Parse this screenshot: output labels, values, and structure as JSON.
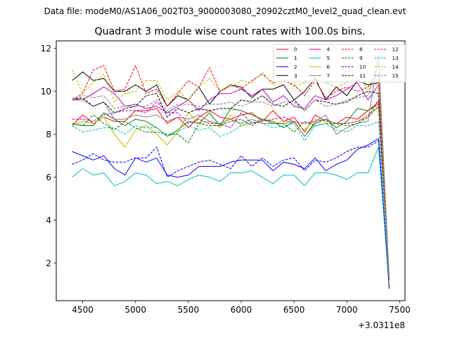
{
  "chart_data": {
    "type": "line",
    "suptitle": "Data file: modeM0/AS1A06_002T03_9000003080_20902cztM0_level2_quad_clean.evt",
    "title": "Quadrant 3 module wise count rates with 100.0s bins.",
    "xlabel": "",
    "ylabel": "",
    "offset_text": "+3.0311e8",
    "xlim": [
      4250,
      7550
    ],
    "ylim": [
      0.25,
      12.35
    ],
    "x_ticks": [
      4500,
      5000,
      5500,
      6000,
      6500,
      7000,
      7500
    ],
    "y_ticks": [
      2,
      4,
      6,
      8,
      10,
      12
    ],
    "x": [
      4400,
      4500,
      4600,
      4700,
      4800,
      4900,
      5000,
      5100,
      5200,
      5300,
      5400,
      5500,
      5600,
      5700,
      5800,
      5900,
      6000,
      6100,
      6200,
      6300,
      6400,
      6500,
      6600,
      6700,
      6800,
      6900,
      7000,
      7100,
      7200,
      7300,
      7400
    ],
    "legend": {
      "location": "top-right",
      "columns": 4
    },
    "series": [
      {
        "name": "0",
        "color": "#ff0000",
        "dash": "solid",
        "values": [
          8.4,
          8.9,
          8.5,
          8.8,
          8.6,
          8.6,
          9.1,
          9.1,
          9.2,
          8.5,
          8.8,
          8.3,
          8.8,
          9.1,
          8.8,
          8.7,
          8.9,
          9.0,
          8.6,
          9.1,
          8.6,
          8.8,
          8.1,
          8.9,
          8.6,
          8.5,
          8.8,
          8.7,
          9.1,
          9.5,
          1.2
        ]
      },
      {
        "name": "1",
        "color": "#008000",
        "dash": "solid",
        "values": [
          8.5,
          8.4,
          8.4,
          9.0,
          8.7,
          8.4,
          8.7,
          8.6,
          8.3,
          7.9,
          8.2,
          8.6,
          8.5,
          9.0,
          8.4,
          9.2,
          9.1,
          8.9,
          8.7,
          8.6,
          8.3,
          8.6,
          7.9,
          8.5,
          8.7,
          8.3,
          8.6,
          9.2,
          9.1,
          9.4,
          1.3
        ]
      },
      {
        "name": "2",
        "color": "#0000ff",
        "dash": "solid",
        "values": [
          7.2,
          7.0,
          6.8,
          7.0,
          6.4,
          6.1,
          6.9,
          6.7,
          6.9,
          6.1,
          6.0,
          6.1,
          6.5,
          6.5,
          6.5,
          6.7,
          6.8,
          6.8,
          6.8,
          6.3,
          6.7,
          6.6,
          6.4,
          6.9,
          6.3,
          6.6,
          6.8,
          7.3,
          7.5,
          7.8,
          0.8
        ]
      },
      {
        "name": "3",
        "color": "#000000",
        "dash": "solid",
        "values": [
          10.5,
          10.9,
          10.5,
          10.6,
          10.0,
          10.0,
          10.3,
          10.0,
          10.3,
          9.3,
          9.8,
          9.6,
          10.2,
          9.4,
          10.0,
          10.3,
          10.2,
          9.7,
          10.1,
          10.1,
          10.3,
          9.6,
          10.0,
          10.6,
          9.6,
          10.2,
          9.8,
          10.5,
          10.3,
          10.4,
          1.1
        ]
      },
      {
        "name": "4",
        "color": "#c000c0",
        "dash": "solid",
        "values": [
          9.6,
          9.6,
          9.9,
          10.2,
          9.9,
          9.3,
          9.4,
          9.2,
          9.3,
          9.0,
          9.3,
          9.6,
          9.1,
          9.6,
          9.9,
          9.9,
          10.1,
          9.8,
          10.1,
          9.5,
          9.8,
          9.3,
          9.2,
          9.8,
          9.6,
          9.8,
          10.1,
          10.4,
          9.6,
          10.3,
          1.2
        ]
      },
      {
        "name": "5",
        "color": "#00bfbf",
        "dash": "solid",
        "values": [
          6.0,
          6.4,
          6.1,
          6.2,
          5.6,
          5.8,
          6.2,
          6.1,
          5.7,
          5.8,
          5.6,
          5.9,
          6.1,
          6.0,
          5.8,
          6.2,
          6.2,
          6.3,
          6.0,
          5.7,
          6.1,
          6.1,
          5.6,
          6.2,
          6.2,
          6.1,
          5.9,
          6.2,
          6.2,
          7.4,
          1.1
        ]
      },
      {
        "name": "6",
        "color": "#bfbf00",
        "dash": "solid",
        "values": [
          8.4,
          8.6,
          8.5,
          8.8,
          8.0,
          7.4,
          8.2,
          8.4,
          8.0,
          7.5,
          8.1,
          9.0,
          8.5,
          8.6,
          8.3,
          8.9,
          8.4,
          8.5,
          8.7,
          8.5,
          8.6,
          8.6,
          8.2,
          8.7,
          8.6,
          8.5,
          8.5,
          8.6,
          8.9,
          9.3,
          1.1
        ]
      },
      {
        "name": "7",
        "color": "#808080",
        "dash": "solid",
        "values": [
          9.7,
          9.6,
          9.3,
          9.5,
          8.7,
          8.7,
          8.9,
          8.8,
          8.9,
          8.6,
          8.8,
          8.7,
          8.9,
          8.6,
          8.5,
          8.7,
          8.5,
          8.7,
          8.5,
          8.5,
          8.5,
          8.6,
          7.9,
          8.6,
          8.9,
          8.0,
          8.3,
          8.5,
          8.6,
          11.7,
          1.3
        ]
      },
      {
        "name": "8",
        "color": "#ff0000",
        "dash": "dashed",
        "values": [
          9.6,
          9.9,
          11.0,
          11.2,
          10.0,
          10.1,
          11.2,
          9.9,
          10.1,
          9.3,
          9.9,
          10.5,
          10.2,
          11.1,
          10.0,
          10.3,
          10.1,
          10.5,
          10.8,
          10.4,
          10.5,
          10.3,
          9.8,
          10.5,
          9.7,
          10.0,
          10.2,
          10.0,
          10.2,
          10.8,
          1.2
        ]
      },
      {
        "name": "9",
        "color": "#008000",
        "dash": "dashed",
        "values": [
          8.5,
          8.4,
          8.9,
          8.5,
          8.2,
          8.6,
          8.3,
          8.1,
          8.1,
          8.0,
          8.0,
          7.6,
          8.5,
          8.4,
          8.4,
          8.6,
          8.7,
          8.4,
          8.7,
          8.5,
          8.5,
          8.1,
          8.6,
          8.4,
          8.5,
          8.5,
          8.4,
          8.5,
          8.8,
          9.3,
          1.2
        ]
      },
      {
        "name": "10",
        "color": "#0000ff",
        "dash": "dashed",
        "values": [
          6.6,
          6.8,
          7.1,
          6.8,
          6.7,
          6.7,
          6.9,
          6.9,
          7.4,
          6.0,
          6.3,
          6.5,
          6.7,
          6.8,
          6.6,
          6.4,
          7.0,
          6.5,
          6.9,
          6.5,
          6.8,
          6.9,
          6.3,
          6.8,
          6.7,
          6.9,
          7.2,
          7.4,
          7.4,
          7.7,
          0.9
        ]
      },
      {
        "name": "11",
        "color": "#000000",
        "dash": "dashed",
        "values": [
          9.6,
          9.7,
          9.3,
          9.5,
          9.0,
          9.2,
          9.3,
          9.8,
          9.9,
          8.8,
          9.2,
          9.0,
          9.2,
          9.1,
          9.2,
          9.2,
          9.6,
          9.5,
          9.8,
          9.4,
          9.3,
          9.6,
          9.1,
          9.6,
          9.5,
          9.4,
          9.5,
          9.8,
          10.0,
          9.9,
          1.1
        ]
      },
      {
        "name": "12",
        "color": "#c000c0",
        "dash": "dashed",
        "values": [
          8.7,
          8.7,
          8.6,
          8.9,
          9.0,
          9.1,
          9.1,
          9.0,
          9.5,
          9.0,
          9.0,
          8.5,
          8.7,
          8.5,
          8.5,
          8.3,
          9.0,
          8.5,
          8.6,
          8.7,
          8.8,
          8.6,
          8.5,
          8.6,
          8.7,
          8.5,
          8.5,
          8.6,
          8.8,
          9.6,
          1.2
        ]
      },
      {
        "name": "13",
        "color": "#00bfbf",
        "dash": "dashed",
        "values": [
          8.4,
          8.1,
          8.2,
          8.3,
          8.3,
          8.0,
          8.4,
          8.3,
          8.3,
          7.9,
          8.1,
          8.4,
          8.2,
          8.3,
          7.9,
          8.1,
          8.4,
          8.6,
          8.5,
          8.3,
          8.4,
          8.5,
          7.7,
          8.4,
          8.5,
          8.2,
          8.1,
          8.4,
          8.4,
          8.6,
          1.1
        ]
      },
      {
        "name": "14",
        "color": "#bfbf00",
        "dash": "dashed",
        "values": [
          11.0,
          9.9,
          10.4,
          10.8,
          9.5,
          9.9,
          10.0,
          10.5,
          10.5,
          9.6,
          10.0,
          9.6,
          10.2,
          10.6,
          10.0,
          10.2,
          10.5,
          10.4,
          10.9,
          10.3,
          10.6,
          10.2,
          10.4,
          10.6,
          10.4,
          10.2,
          10.4,
          10.7,
          10.1,
          10.4,
          1.0
        ]
      },
      {
        "name": "15",
        "color": "#808080",
        "dash": "dashed",
        "values": [
          9.6,
          9.8,
          9.7,
          9.8,
          9.2,
          9.3,
          9.3,
          9.3,
          9.6,
          9.1,
          9.4,
          9.4,
          9.3,
          9.4,
          9.4,
          9.5,
          9.3,
          9.5,
          9.5,
          9.3,
          9.5,
          9.5,
          9.1,
          9.6,
          9.3,
          9.4,
          9.6,
          9.7,
          9.8,
          11.4,
          1.2
        ]
      }
    ]
  }
}
